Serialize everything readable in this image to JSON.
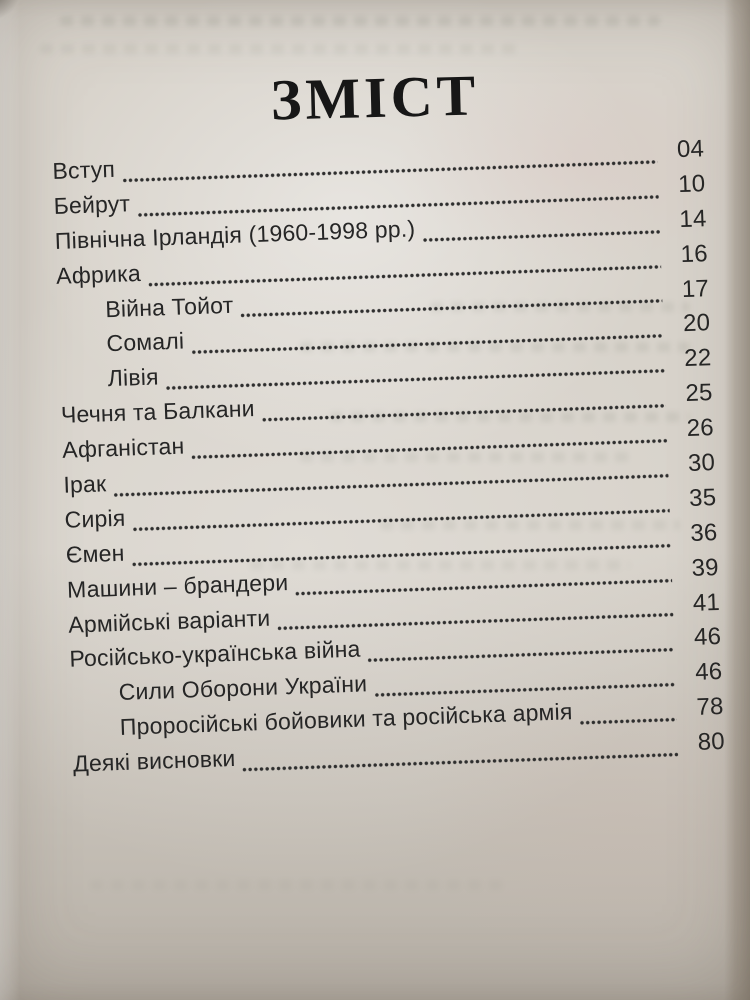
{
  "toc": {
    "title": "ЗМІСТ",
    "entries": [
      {
        "label": "Вступ",
        "page": "04",
        "indent": 0
      },
      {
        "label": "Бейрут",
        "page": "10",
        "indent": 0
      },
      {
        "label": "Північна Ірландія (1960-1998 рр.)",
        "page": "14",
        "indent": 0
      },
      {
        "label": "Африка",
        "page": "16",
        "indent": 0
      },
      {
        "label": "Війна Тойот",
        "page": "17",
        "indent": 1
      },
      {
        "label": "Сомалі",
        "page": "20",
        "indent": 1
      },
      {
        "label": "Лівія",
        "page": "22",
        "indent": 1
      },
      {
        "label": "Чечня та Балкани",
        "page": "25",
        "indent": 0
      },
      {
        "label": "Афганістан",
        "page": "26",
        "indent": 0
      },
      {
        "label": "Ірак",
        "page": "30",
        "indent": 0
      },
      {
        "label": "Сирія",
        "page": "35",
        "indent": 0
      },
      {
        "label": "Ємен",
        "page": "36",
        "indent": 0
      },
      {
        "label": "Машини – брандери",
        "page": "39",
        "indent": 0
      },
      {
        "label": "Армійські варіанти",
        "page": "41",
        "indent": 0
      },
      {
        "label": "Російсько-українська війна",
        "page": "46",
        "indent": 0
      },
      {
        "label": "Сили Оборони України",
        "page": "46",
        "indent": 1
      },
      {
        "label": "Проросійські бойовики та російська армія",
        "page": "78",
        "indent": 1
      },
      {
        "label": "Деякі висновки",
        "page": "80",
        "indent": 0
      }
    ]
  },
  "colors": {
    "paper": "#d8d3cb",
    "ink": "#262626",
    "title_ink": "#171717",
    "dot": "#2e2e2e"
  }
}
